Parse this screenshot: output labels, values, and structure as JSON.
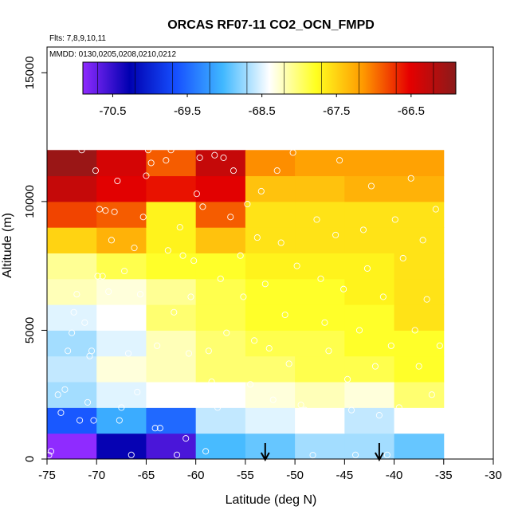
{
  "chart_data": {
    "type": "heatmap",
    "title": "ORCAS RF07-11 CO2_OCN_FMPD",
    "annotations": {
      "flights": "Flts: 7,8,9,10,11",
      "dates": "MMDD: 0130,0205,0208,0210,0212"
    },
    "xlabel": "Latitude (deg N)",
    "ylabel": "Altitude (m)",
    "xlim": [
      -75,
      -30
    ],
    "ylim": [
      0,
      16000
    ],
    "x_ticks": [
      -75,
      -70,
      -65,
      -60,
      -55,
      -50,
      -45,
      -40,
      -35,
      -30
    ],
    "x_tick_labels": [
      "-75",
      "-70",
      "-65",
      "-60",
      "-55",
      "-50",
      "-45",
      "-40",
      "-35",
      "-30"
    ],
    "y_ticks": [
      0,
      5000,
      10000,
      15000
    ],
    "y_tick_labels": [
      "0",
      "5000",
      "10000",
      "15000"
    ],
    "colorbar": {
      "range": [
        -70.9,
        -65.9
      ],
      "ticks": [
        -70.5,
        -69.5,
        -68.5,
        -67.5,
        -66.5
      ],
      "tick_labels": [
        "-70.5",
        "-69.5",
        "-68.5",
        "-67.5",
        "-66.5"
      ],
      "colors": [
        "#8f2bff",
        "#0000b0",
        "#1650ff",
        "#40b8ff",
        "#ffffff",
        "#ffff20",
        "#ff9a00",
        "#e60000",
        "#8b1a1a"
      ]
    },
    "lat_bins": [
      -75,
      -70,
      -65,
      -60,
      -55,
      -50,
      -45,
      -40,
      -35
    ],
    "alt_bins": [
      0,
      1000,
      2000,
      3000,
      4000,
      5000,
      6000,
      7000,
      8000,
      9000,
      10000,
      11000,
      12000
    ],
    "values": [
      [
        -70.9,
        -70.3,
        -70.6,
        -69.0,
        -68.9,
        -68.7,
        -68.7,
        -68.9
      ],
      [
        -69.6,
        -69.1,
        -69.5,
        -68.6,
        -68.5,
        -68.4,
        -68.6,
        -68.4
      ],
      [
        -68.7,
        -68.5,
        -68.4,
        -68.4,
        -68.3,
        -68.2,
        -68.3,
        -68.0
      ],
      [
        -68.6,
        -68.3,
        -68.2,
        -68.0,
        -68.0,
        -67.9,
        -67.9,
        -67.8
      ],
      [
        -68.7,
        -68.5,
        -68.2,
        -68.0,
        -67.9,
        -67.9,
        -67.8,
        -67.8
      ],
      [
        -68.5,
        -68.4,
        -68.0,
        -67.9,
        -67.8,
        -67.8,
        -67.8,
        -67.6
      ],
      [
        -68.2,
        -68.3,
        -68.1,
        -67.9,
        -67.8,
        -67.8,
        -67.7,
        -67.6
      ],
      [
        -68.1,
        -67.9,
        -67.8,
        -67.8,
        -67.7,
        -67.7,
        -67.7,
        -67.6
      ],
      [
        -67.5,
        -67.3,
        -67.7,
        -67.4,
        -67.6,
        -67.6,
        -67.6,
        -67.6
      ],
      [
        -66.8,
        -66.9,
        -67.7,
        -66.9,
        -67.6,
        -67.6,
        -67.6,
        -67.6
      ],
      [
        -66.3,
        -66.5,
        -66.6,
        -66.5,
        -67.4,
        -67.4,
        -67.3,
        -67.3
      ],
      [
        -66.0,
        -66.4,
        -66.9,
        -66.3,
        -67.1,
        -67.2,
        -67.2,
        -67.2
      ]
    ],
    "samples": [
      [
        -74.8,
        150
      ],
      [
        -74.6,
        300
      ],
      [
        -73.9,
        2500
      ],
      [
        -73.6,
        1800
      ],
      [
        -73.2,
        2700
      ],
      [
        -72.9,
        4200
      ],
      [
        -72.5,
        4900
      ],
      [
        -72.3,
        5700
      ],
      [
        -72.0,
        6400
      ],
      [
        -71.7,
        1500
      ],
      [
        -71.5,
        12000
      ],
      [
        -71.2,
        5300
      ],
      [
        -70.9,
        2200
      ],
      [
        -70.7,
        4000
      ],
      [
        -70.5,
        4200
      ],
      [
        -70.3,
        1500
      ],
      [
        -70.1,
        11200
      ],
      [
        -69.9,
        7100
      ],
      [
        -69.7,
        9700
      ],
      [
        -69.4,
        7100
      ],
      [
        -69.1,
        9650
      ],
      [
        -68.8,
        6500
      ],
      [
        -68.5,
        8500
      ],
      [
        -68.2,
        9600
      ],
      [
        -67.9,
        10800
      ],
      [
        -67.7,
        1500
      ],
      [
        -67.5,
        2000
      ],
      [
        -67.2,
        7300
      ],
      [
        -66.8,
        4100
      ],
      [
        -66.5,
        160
      ],
      [
        -66.2,
        8200
      ],
      [
        -65.9,
        2600
      ],
      [
        -65.6,
        6400
      ],
      [
        -65.3,
        9400
      ],
      [
        -65.0,
        11000
      ],
      [
        -64.8,
        12000
      ],
      [
        -64.5,
        11500
      ],
      [
        -64.1,
        1200
      ],
      [
        -63.9,
        4400
      ],
      [
        -63.6,
        1200
      ],
      [
        -63.3,
        2200
      ],
      [
        -63.0,
        11600
      ],
      [
        -62.8,
        8100
      ],
      [
        -62.5,
        12000
      ],
      [
        -62.2,
        5700
      ],
      [
        -61.9,
        160
      ],
      [
        -61.6,
        9000
      ],
      [
        -61.3,
        7900
      ],
      [
        -61.0,
        800
      ],
      [
        -60.7,
        4100
      ],
      [
        -60.5,
        6300
      ],
      [
        -60.2,
        7700
      ],
      [
        -59.9,
        10300
      ],
      [
        -59.6,
        11700
      ],
      [
        -59.3,
        9800
      ],
      [
        -59.0,
        300
      ],
      [
        -58.7,
        4200
      ],
      [
        -58.4,
        3000
      ],
      [
        -58.1,
        11800
      ],
      [
        -57.8,
        2000
      ],
      [
        -57.5,
        7000
      ],
      [
        -57.2,
        11700
      ],
      [
        -56.9,
        4900
      ],
      [
        -56.5,
        9400
      ],
      [
        -56.2,
        11200
      ],
      [
        -55.9,
        2800
      ],
      [
        -55.5,
        7900
      ],
      [
        -55.2,
        6300
      ],
      [
        -54.8,
        9900
      ],
      [
        -54.5,
        2900
      ],
      [
        -54.1,
        4600
      ],
      [
        -53.8,
        8600
      ],
      [
        -53.4,
        10400
      ],
      [
        -53.0,
        6800
      ],
      [
        -52.6,
        4300
      ],
      [
        -52.2,
        2300
      ],
      [
        -51.8,
        11200
      ],
      [
        -51.4,
        8400
      ],
      [
        -51.0,
        5600
      ],
      [
        -50.6,
        3700
      ],
      [
        -50.2,
        11900
      ],
      [
        -49.8,
        7500
      ],
      [
        -49.4,
        2100
      ],
      [
        -49.0,
        1900
      ],
      [
        -48.6,
        1500
      ],
      [
        -48.2,
        150
      ],
      [
        -47.8,
        9300
      ],
      [
        -47.4,
        7000
      ],
      [
        -47.0,
        5300
      ],
      [
        -46.6,
        4200
      ],
      [
        -46.3,
        1500
      ],
      [
        -45.9,
        8700
      ],
      [
        -45.5,
        11600
      ],
      [
        -45.1,
        6600
      ],
      [
        -44.7,
        3100
      ],
      [
        -44.3,
        1900
      ],
      [
        -43.9,
        160
      ],
      [
        -43.5,
        5000
      ],
      [
        -43.1,
        8900
      ],
      [
        -42.7,
        7400
      ],
      [
        -42.3,
        10600
      ],
      [
        -41.9,
        3600
      ],
      [
        -41.5,
        1700
      ],
      [
        -41.1,
        6300
      ],
      [
        -40.7,
        160
      ],
      [
        -40.3,
        4400
      ],
      [
        -39.9,
        9300
      ],
      [
        -39.5,
        2000
      ],
      [
        -39.1,
        7800
      ],
      [
        -38.7,
        1700
      ],
      [
        -38.3,
        10900
      ],
      [
        -37.9,
        5000
      ],
      [
        -37.5,
        3600
      ],
      [
        -37.1,
        8500
      ],
      [
        -36.7,
        6200
      ],
      [
        -36.2,
        2500
      ],
      [
        -35.8,
        9700
      ],
      [
        -35.4,
        4400
      ]
    ],
    "arrows_at_lat": [
      -53,
      -41.5
    ]
  }
}
